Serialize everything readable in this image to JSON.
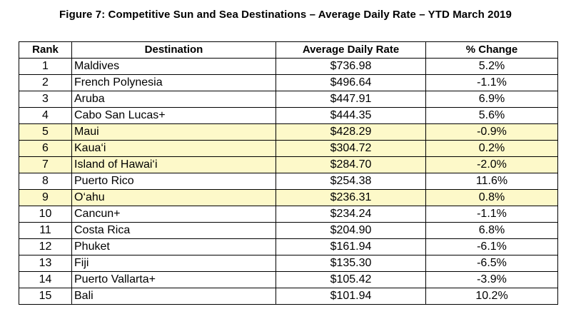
{
  "title": "Figure 7: Competitive Sun and Sea Destinations – Average Daily Rate – YTD March 2019",
  "columns": {
    "rank": "Rank",
    "destination": "Destination",
    "adr": "Average Daily Rate",
    "change": "% Change"
  },
  "highlight_color": "#fdf9c9",
  "rows": [
    {
      "rank": "1",
      "destination": "Maldives",
      "adr": "$736.98",
      "change": "5.2%",
      "highlighted": false
    },
    {
      "rank": "2",
      "destination": "French Polynesia",
      "adr": "$496.64",
      "change": "-1.1%",
      "highlighted": false
    },
    {
      "rank": "3",
      "destination": "Aruba",
      "adr": "$447.91",
      "change": "6.9%",
      "highlighted": false
    },
    {
      "rank": "4",
      "destination": "Cabo San Lucas+",
      "adr": "$444.35",
      "change": "5.6%",
      "highlighted": false
    },
    {
      "rank": "5",
      "destination": "Maui",
      "adr": "$428.29",
      "change": "-0.9%",
      "highlighted": true
    },
    {
      "rank": "6",
      "destination": "Kaua‘i",
      "adr": "$304.72",
      "change": "0.2%",
      "highlighted": true
    },
    {
      "rank": "7",
      "destination": "Island of Hawai‘i",
      "adr": "$284.70",
      "change": "-2.0%",
      "highlighted": true
    },
    {
      "rank": "8",
      "destination": "Puerto Rico",
      "adr": "$254.38",
      "change": "11.6%",
      "highlighted": false
    },
    {
      "rank": "9",
      "destination": "O‘ahu",
      "adr": "$236.31",
      "change": "0.8%",
      "highlighted": true
    },
    {
      "rank": "10",
      "destination": "Cancun+",
      "adr": "$234.24",
      "change": "-1.1%",
      "highlighted": false
    },
    {
      "rank": "11",
      "destination": "Costa Rica",
      "adr": "$204.90",
      "change": "6.8%",
      "highlighted": false
    },
    {
      "rank": "12",
      "destination": "Phuket",
      "adr": "$161.94",
      "change": "-6.1%",
      "highlighted": false
    },
    {
      "rank": "13",
      "destination": "Fiji",
      "adr": "$135.30",
      "change": "-6.5%",
      "highlighted": false
    },
    {
      "rank": "14",
      "destination": "Puerto Vallarta+",
      "adr": "$105.42",
      "change": "-3.9%",
      "highlighted": false
    },
    {
      "rank": "15",
      "destination": "Bali",
      "adr": "$101.94",
      "change": "10.2%",
      "highlighted": false
    }
  ]
}
